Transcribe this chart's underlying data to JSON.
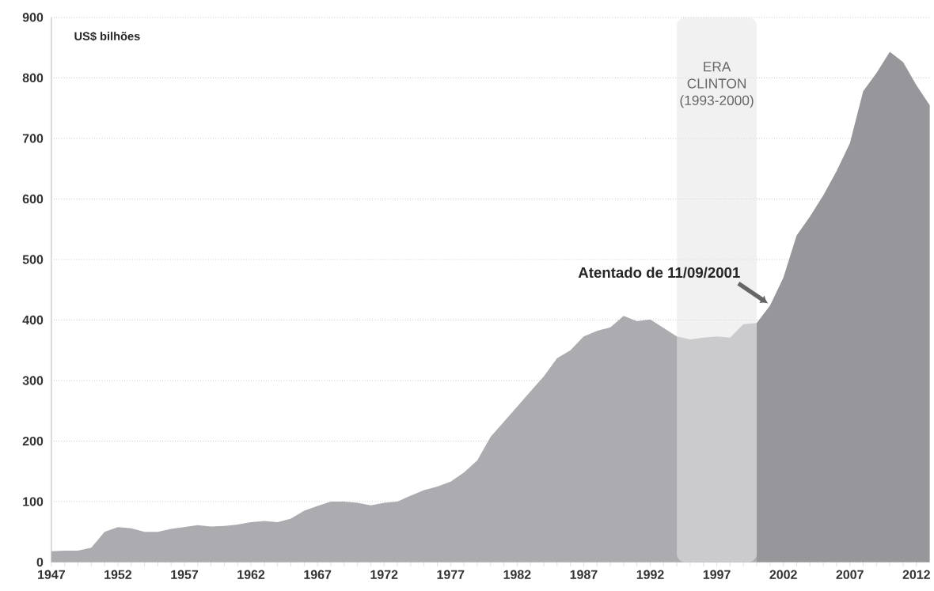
{
  "chart_data": {
    "type": "area",
    "ylabel": "US$ bilhões",
    "series": [
      {
        "color": "#acacb0",
        "x": [
          1947,
          1948,
          1949,
          1950,
          1951,
          1952,
          1953,
          1954,
          1955,
          1956,
          1957,
          1958,
          1959,
          1960,
          1961,
          1962,
          1963,
          1964,
          1965,
          1966,
          1967,
          1968,
          1969,
          1970,
          1971,
          1972,
          1973,
          1974,
          1975,
          1976,
          1977,
          1978,
          1979,
          1980,
          1981,
          1982,
          1983,
          1984,
          1985,
          1986,
          1987,
          1988,
          1989,
          1990,
          1991,
          1992,
          1993,
          1994,
          1995,
          1996,
          1997,
          1998,
          1999,
          2000
        ],
        "values": [
          18,
          19,
          19,
          24,
          50,
          58,
          56,
          50,
          50,
          55,
          58,
          61,
          59,
          60,
          62,
          66,
          68,
          66,
          72,
          85,
          93,
          100,
          100,
          98,
          94,
          98,
          100,
          110,
          119,
          125,
          133,
          148,
          168,
          207,
          232,
          257,
          282,
          307,
          337,
          350,
          373,
          382,
          388,
          407,
          398,
          401,
          387,
          373,
          368,
          371,
          373,
          371,
          393,
          395
        ]
      },
      {
        "color": "#97979b",
        "x": [
          2000,
          2001,
          2002,
          2003,
          2004,
          2005,
          2006,
          2007,
          2008,
          2009,
          2010,
          2011,
          2012,
          2013
        ],
        "values": [
          395,
          424,
          470,
          540,
          571,
          606,
          646,
          692,
          778,
          808,
          843,
          826,
          788,
          755
        ]
      }
    ],
    "xlim": [
      1947,
      2013
    ],
    "xticks": [
      1947,
      1952,
      1957,
      1962,
      1967,
      1972,
      1977,
      1982,
      1987,
      1992,
      1997,
      2002,
      2007,
      2012
    ],
    "ylim": [
      0,
      900
    ],
    "yticks": [
      0,
      100,
      200,
      300,
      400,
      500,
      600,
      700,
      800,
      900
    ],
    "grid": "y",
    "bands": [
      {
        "axis": "x",
        "from": 1994,
        "to": 2000,
        "label": "ERA CLINTON (1993-2000)",
        "color": "#e6e6e8"
      }
    ],
    "annotations": [
      {
        "text": "Atentado de 11/09/2001",
        "x": 2001,
        "y": 424
      }
    ]
  }
}
